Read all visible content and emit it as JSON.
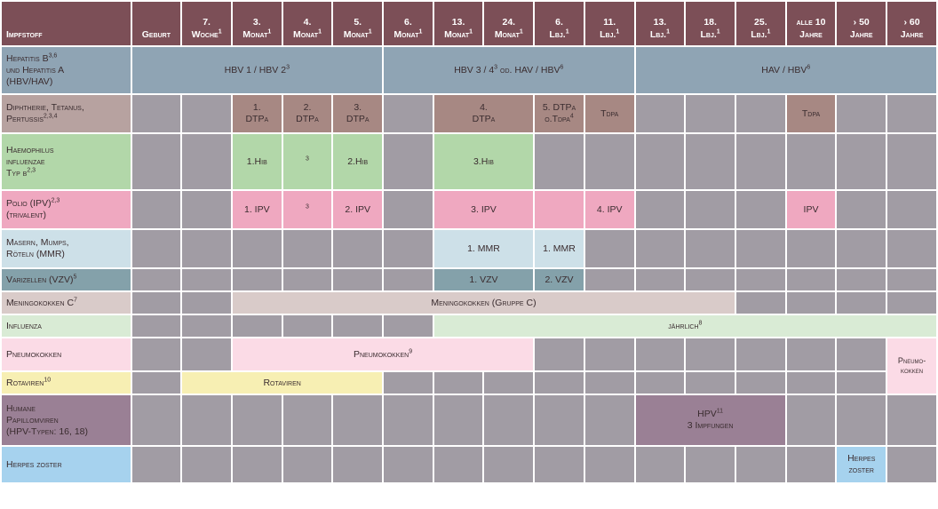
{
  "header": [
    {
      "id": "impfstoff",
      "label": "Impfstoff",
      "sup": ""
    },
    {
      "id": "geburt",
      "label": "Geburt",
      "sup": ""
    },
    {
      "id": "w7",
      "label": "7.\nWoche",
      "sup": "1"
    },
    {
      "id": "m3",
      "label": "3.\nMonat",
      "sup": "1"
    },
    {
      "id": "m4",
      "label": "4.\nMonat",
      "sup": "1"
    },
    {
      "id": "m5",
      "label": "5.\nMonat",
      "sup": "1"
    },
    {
      "id": "m6",
      "label": "6.\nMonat",
      "sup": "1"
    },
    {
      "id": "m13",
      "label": "13.\nMonat",
      "sup": "1"
    },
    {
      "id": "m24",
      "label": "24.\nMonat",
      "sup": "1"
    },
    {
      "id": "l6",
      "label": "6.\nLbj.",
      "sup": "1"
    },
    {
      "id": "l11",
      "label": "11.\nLbj.",
      "sup": "1"
    },
    {
      "id": "l13",
      "label": "13.\nLbj.",
      "sup": "1"
    },
    {
      "id": "l18",
      "label": "18.\nLbj.",
      "sup": "1"
    },
    {
      "id": "l25",
      "label": "25.\nLbj.",
      "sup": "1"
    },
    {
      "id": "a10",
      "label": "alle 10\nJahre",
      "sup": ""
    },
    {
      "id": "a50",
      "label": "› 50\nJahre",
      "sup": ""
    },
    {
      "id": "a60",
      "label": "› 60\nJahre",
      "sup": ""
    }
  ],
  "rows": [
    {
      "id": "hepatitis",
      "h": 54,
      "label": "Hepatitis B",
      "label_sup": "3,6",
      "label_rest": "\nund Hepatitis A\n(HBV/HAV)",
      "label_bg": "#8fa4b4",
      "color": "#8fa4b4",
      "cells": [
        {
          "span": 5,
          "text": "HBV 1 / HBV 2",
          "sup": "3",
          "bg": "#8fa4b4"
        },
        {
          "span": 5,
          "text": "HBV 3 / 4",
          "sup": "3",
          "after": " od. HAV / HBV",
          "sup2": "6",
          "bg": "#8fa4b4"
        },
        {
          "span": 6,
          "text": "HAV / HBV",
          "sup": "6",
          "bg": "#8fa4b4"
        }
      ]
    },
    {
      "id": "dtp",
      "h": 44,
      "label": "Diphtherie, Tetanus,\nPertussis",
      "label_sup": "2,3,4",
      "label_bg": "#b7a2a0",
      "color": "#b7a2a0",
      "cells": [
        {
          "span": 2,
          "empty": true
        },
        {
          "span": 1,
          "text": "1.\nDTPa",
          "bg": "#a78883"
        },
        {
          "span": 1,
          "text": "2.\nDTPa",
          "bg": "#a78883"
        },
        {
          "span": 1,
          "text": "3.\nDTPa",
          "bg": "#a78883"
        },
        {
          "span": 1,
          "empty": true
        },
        {
          "span": 2,
          "text": "4.\nDTPa",
          "bg": "#a78883"
        },
        {
          "span": 1,
          "text": "5. DTPa\no.Tdpa",
          "sup": "4",
          "bg": "#a78883"
        },
        {
          "span": 1,
          "text": "Tdpa",
          "bg": "#a78883"
        },
        {
          "span": 3,
          "empty": true
        },
        {
          "span": 1,
          "text": "Tdpa",
          "bg": "#a78883"
        },
        {
          "span": 2,
          "empty": true
        }
      ]
    },
    {
      "id": "hib",
      "h": 64,
      "label": "Haemophilus\ninfluenzae\nTyp b",
      "label_sup": "2,3",
      "label_bg": "#b2d7a9",
      "color": "#b2d7a9",
      "cells": [
        {
          "span": 2,
          "empty": true
        },
        {
          "span": 1,
          "text": "1.Hib",
          "bg": "#b2d7a9"
        },
        {
          "span": 1,
          "text": "",
          "sup": "3",
          "bg": "#b2d7a9"
        },
        {
          "span": 1,
          "text": "2.Hib",
          "bg": "#b2d7a9"
        },
        {
          "span": 1,
          "empty": true
        },
        {
          "span": 2,
          "text": "3.Hib",
          "bg": "#b2d7a9"
        },
        {
          "span": 8,
          "empty": true
        }
      ]
    },
    {
      "id": "polio",
      "h": 44,
      "label": "Polio (IPV)",
      "label_sup": "2,3",
      "label_rest": "\n(trivalent)",
      "label_bg": "#efa8c0",
      "color": "#efa8c0",
      "cells": [
        {
          "span": 2,
          "empty": true
        },
        {
          "span": 1,
          "text": "1. IPV",
          "bg": "#efa8c0"
        },
        {
          "span": 1,
          "text": "",
          "sup": "3",
          "bg": "#efa8c0"
        },
        {
          "span": 1,
          "text": "2. IPV",
          "bg": "#efa8c0"
        },
        {
          "span": 1,
          "empty": true
        },
        {
          "span": 2,
          "text": "3. IPV",
          "bg": "#efa8c0"
        },
        {
          "span": 1,
          "text": "",
          "bg": "#efa8c0"
        },
        {
          "span": 1,
          "text": "4. IPV",
          "bg": "#efa8c0"
        },
        {
          "span": 3,
          "empty": true
        },
        {
          "span": 1,
          "text": "IPV",
          "bg": "#efa8c0"
        },
        {
          "span": 2,
          "empty": true
        }
      ]
    },
    {
      "id": "mmr",
      "h": 44,
      "label": "Masern, Mumps,\nRöteln (MMR)",
      "label_bg": "#cde0e8",
      "color": "#cde0e8",
      "cells": [
        {
          "span": 6,
          "empty": true
        },
        {
          "span": 2,
          "text": "1. MMR",
          "bg": "#cde0e8"
        },
        {
          "span": 1,
          "text": "1. MMR",
          "bg": "#cde0e8"
        },
        {
          "span": 7,
          "empty": true
        }
      ]
    },
    {
      "id": "vzv",
      "h": 26,
      "label": "Varizellen (VZV)",
      "label_sup": "5",
      "label_bg": "#84a1aa",
      "color": "#84a1aa",
      "cells": [
        {
          "span": 6,
          "empty": true
        },
        {
          "span": 2,
          "text": "1. VZV",
          "bg": "#84a1aa"
        },
        {
          "span": 1,
          "text": "2. VZV",
          "bg": "#84a1aa"
        },
        {
          "span": 7,
          "empty": true
        }
      ]
    },
    {
      "id": "mening",
      "h": 26,
      "label": "Meningokokken C",
      "label_sup": "7",
      "label_bg": "#d9cbc9",
      "color": "#d9cbc9",
      "cells": [
        {
          "span": 2,
          "empty": true
        },
        {
          "span": 10,
          "text": "Meningokokken (Gruppe C)",
          "bg": "#d9cbc9"
        },
        {
          "span": 4,
          "empty": true
        }
      ]
    },
    {
      "id": "influenza",
      "h": 26,
      "label": "Influenza",
      "label_bg": "#d9ebd5",
      "color": "#d9ebd5",
      "cells": [
        {
          "span": 6,
          "empty": true
        },
        {
          "span": 10,
          "text": "jährlich",
          "sup": "8",
          "bg": "#d9ebd5"
        }
      ]
    },
    {
      "id": "pneumo",
      "h": 38,
      "label": "Pneumokokken",
      "label_bg": "#fbdbe6",
      "color": "#fbdbe6",
      "cells": [
        {
          "span": 2,
          "empty": true
        },
        {
          "span": 6,
          "text": "Pneumokokken",
          "sup": "9",
          "bg": "#fbdbe6"
        },
        {
          "span": 7,
          "empty": true
        },
        {
          "span": 1,
          "rowspan": 2,
          "text": "Pneumo-\nkokken",
          "bg": "#fbdbe6",
          "small": true
        }
      ]
    },
    {
      "id": "rota",
      "h": 26,
      "label": "Rotaviren",
      "label_sup": "10",
      "label_bg": "#f7efb3",
      "color": "#f7efb3",
      "cells": [
        {
          "span": 1,
          "empty": true
        },
        {
          "span": 4,
          "text": "Rotaviren",
          "bg": "#f7efb3"
        },
        {
          "span": 10,
          "empty": true
        }
      ]
    },
    {
      "id": "hpv",
      "h": 58,
      "label": "Humane\nPapillomviren\n(HPV-Typen: 16, 18)",
      "label_bg": "#9a8095",
      "color": "#9a8095",
      "cells": [
        {
          "span": 10,
          "empty": true
        },
        {
          "span": 3,
          "text": "HPV",
          "sup": "11",
          "after": "\n3 Impfungen",
          "bg": "#9a8095"
        },
        {
          "span": 3,
          "empty": true
        }
      ]
    },
    {
      "id": "herpes",
      "h": 42,
      "label": "Herpes zoster",
      "label_bg": "#a6d2ee",
      "color": "#a6d2ee",
      "cells": [
        {
          "span": 14,
          "empty": true
        },
        {
          "span": 1,
          "text": "Herpes\nzoster",
          "bg": "#a6d2ee"
        },
        {
          "span": 1,
          "empty": true
        }
      ]
    }
  ]
}
